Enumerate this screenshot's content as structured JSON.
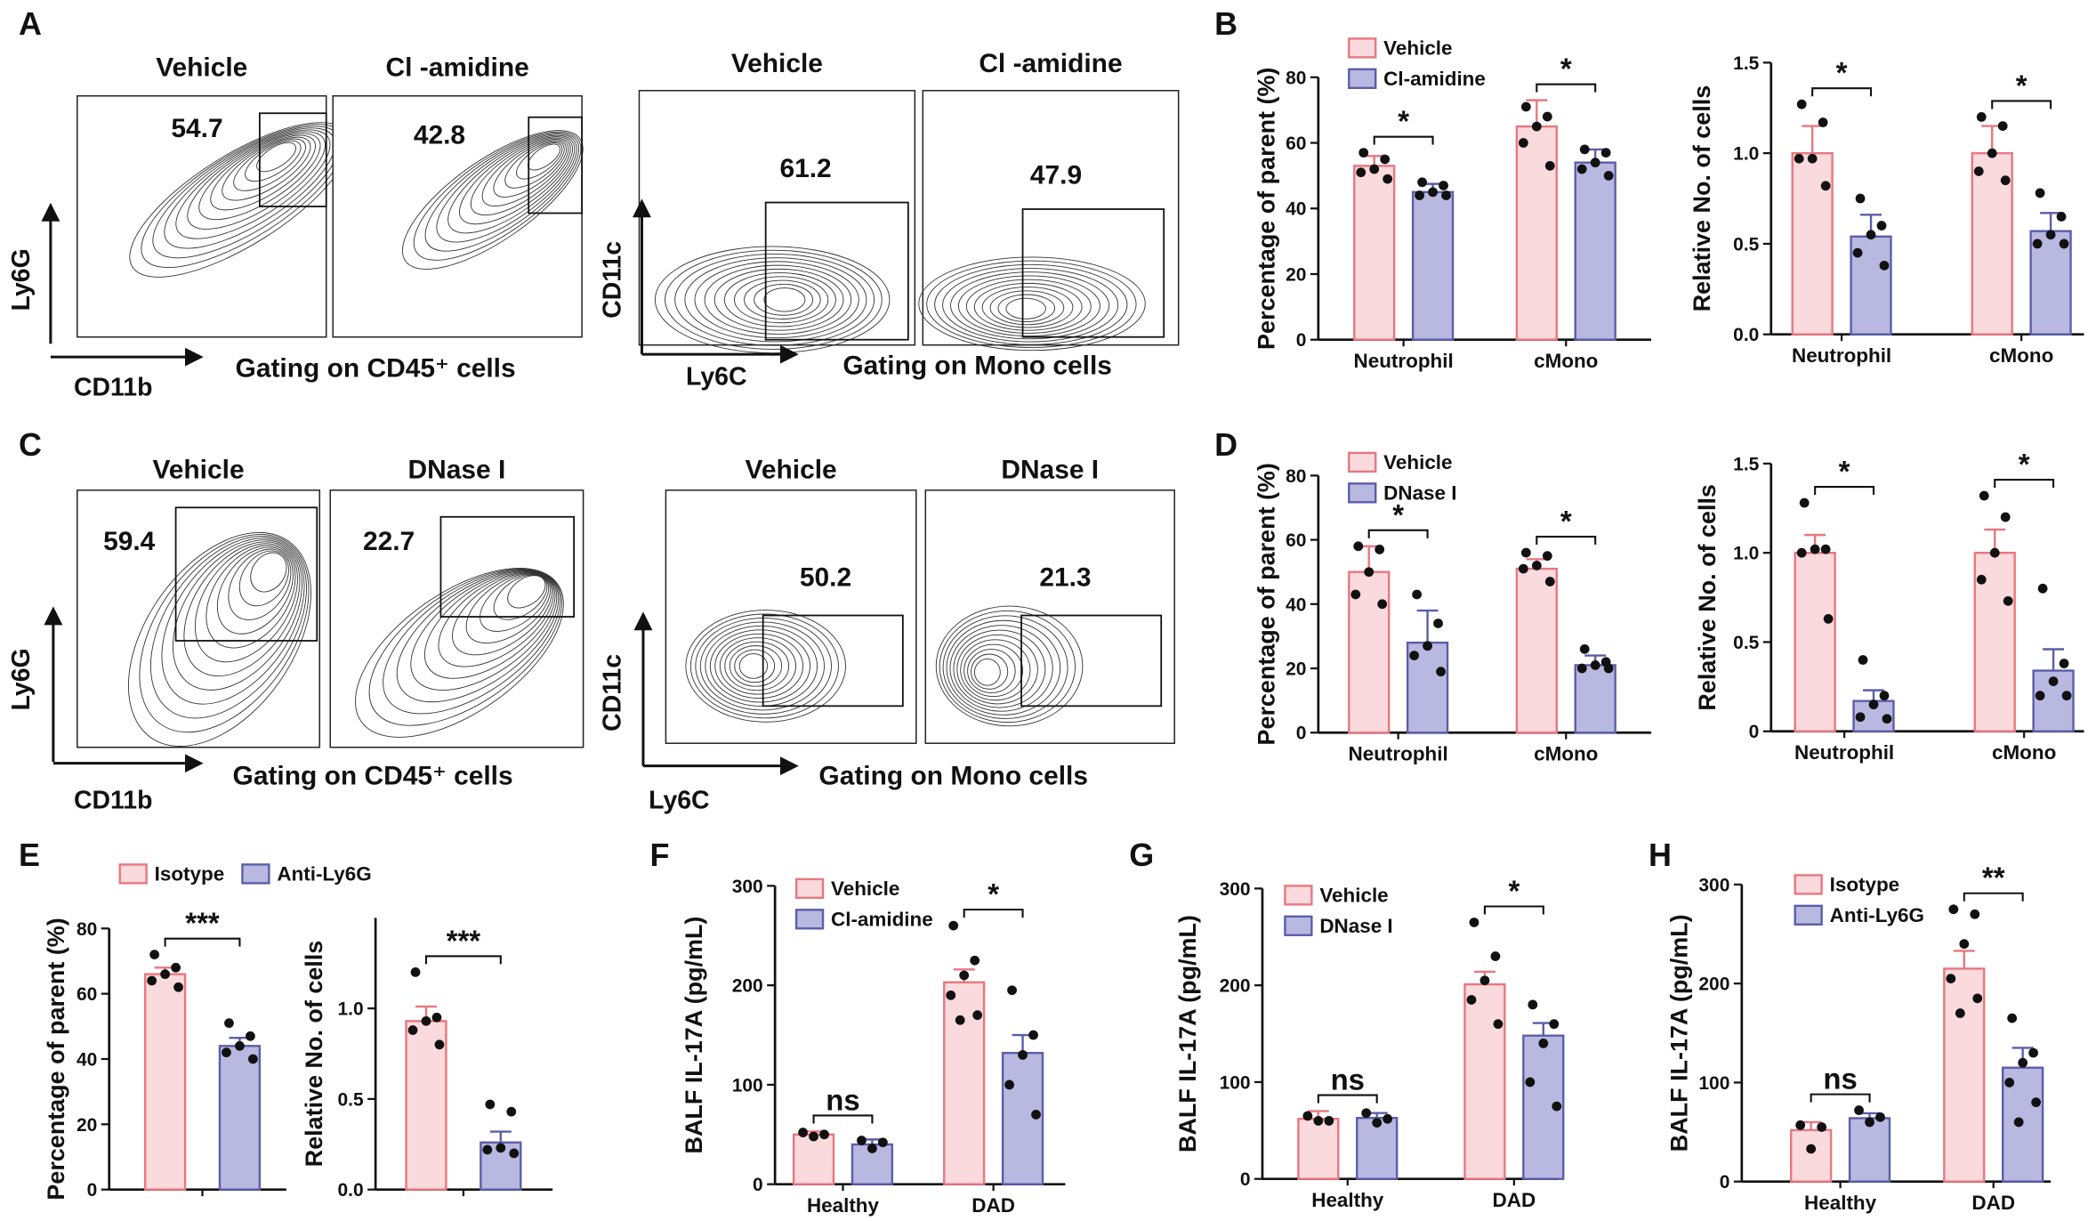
{
  "panel_letters": [
    "A",
    "B",
    "C",
    "D",
    "E",
    "F",
    "G",
    "H"
  ],
  "flow_panels": [
    {
      "x_label": "CD11b",
      "y_label": "Ly6G",
      "gating": "Gating on CD45⁺ cells",
      "plots": [
        {
          "title": "Vehicle",
          "value": 54.7
        },
        {
          "title": "Cl -amidine",
          "value": 42.8
        }
      ]
    },
    {
      "x_label": "Ly6C",
      "y_label": "CD11c",
      "gating": "Gating on Mono cells",
      "plots": [
        {
          "title": "Vehicle",
          "value": 61.2
        },
        {
          "title": "Cl -amidine",
          "value": 47.9
        }
      ]
    },
    {
      "x_label": "CD11b",
      "y_label": "Ly6G",
      "gating": "Gating on CD45⁺ cells",
      "plots": [
        {
          "title": "Vehicle",
          "value": 59.4
        },
        {
          "title": "DNase I",
          "value": 22.7
        }
      ]
    },
    {
      "x_label": "Ly6C",
      "y_label": "CD11c",
      "gating": "Gating on Mono cells",
      "plots": [
        {
          "title": "Vehicle",
          "value": 50.2
        },
        {
          "title": "DNase I",
          "value": 21.3
        }
      ]
    }
  ],
  "chart_data": [
    {
      "type": "bar",
      "y_label": "Percentage of parent (%)",
      "categories": [
        "Neutrophil",
        "cMono"
      ],
      "series": [
        {
          "name": "Vehicle",
          "color": "#e8777f",
          "fill": "#fadadd",
          "values": [
            53,
            65
          ],
          "errors": [
            3,
            8
          ],
          "points": [
            [
              57,
              55,
              52,
              51,
              49
            ],
            [
              71,
              68,
              65,
              60,
              53
            ]
          ]
        },
        {
          "name": "Cl-amidine",
          "color": "#5b5ea8",
          "fill": "#b9b8e0",
          "values": [
            45,
            54
          ],
          "errors": [
            2.5,
            4
          ],
          "points": [
            [
              48,
              47,
              45,
              44,
              44
            ],
            [
              58,
              57,
              54,
              52,
              50
            ]
          ]
        }
      ],
      "ylim": [
        0,
        80
      ],
      "yticks": [
        0,
        20,
        40,
        60,
        80
      ],
      "annotations": [
        {
          "label": "*",
          "category": 0
        },
        {
          "label": "*",
          "category": 1
        }
      ]
    },
    {
      "type": "bar",
      "y_label": "Relative No. of cells",
      "categories": [
        "Neutrophil",
        "cMono"
      ],
      "series": [
        {
          "color": "#e8777f",
          "fill": "#fadadd",
          "values": [
            1.0,
            1.0
          ],
          "errors": [
            0.15,
            0.15
          ],
          "points": [
            [
              1.27,
              1.17,
              0.97,
              0.97,
              0.82
            ],
            [
              1.2,
              1.15,
              1.0,
              0.9,
              0.85
            ]
          ]
        },
        {
          "color": "#5b5ea8",
          "fill": "#b9b8e0",
          "values": [
            0.54,
            0.57
          ],
          "errors": [
            0.12,
            0.1
          ],
          "points": [
            [
              0.75,
              0.6,
              0.55,
              0.45,
              0.38
            ],
            [
              0.78,
              0.65,
              0.55,
              0.5,
              0.5
            ]
          ]
        }
      ],
      "ylim": [
        0,
        1.5
      ],
      "yticks": [
        {
          "value": 0,
          "label": "0.0"
        },
        0.5,
        {
          "value": 1,
          "label": "1.0"
        },
        1.5
      ],
      "annotations": [
        {
          "label": "*",
          "category": 0
        },
        {
          "label": "*",
          "category": 1
        }
      ]
    },
    {
      "type": "bar",
      "y_label": "Percentage of parent (%)",
      "categories": [
        "Neutrophil",
        "cMono"
      ],
      "series": [
        {
          "name": "Vehicle",
          "color": "#e8777f",
          "fill": "#fadadd",
          "values": [
            50,
            51
          ],
          "errors": [
            8,
            3
          ],
          "points": [
            [
              58,
              57,
              50,
              43,
              40
            ],
            [
              56,
              55,
              52,
              51,
              47
            ]
          ]
        },
        {
          "name": "DNase I",
          "color": "#5b5ea8",
          "fill": "#b9b8e0",
          "values": [
            28,
            21
          ],
          "errors": [
            10,
            3
          ],
          "points": [
            [
              43,
              34,
              27,
              24,
              19
            ],
            [
              26,
              22,
              21,
              20,
              20
            ]
          ]
        }
      ],
      "ylim": [
        0,
        80
      ],
      "yticks": [
        0,
        20,
        40,
        60,
        80
      ],
      "annotations": [
        {
          "label": "*",
          "category": 0
        },
        {
          "label": "*",
          "category": 1
        }
      ]
    },
    {
      "type": "bar",
      "y_label": "Relative No. of cells",
      "categories": [
        "Neutrophil",
        "cMono"
      ],
      "series": [
        {
          "color": "#e8777f",
          "fill": "#fadadd",
          "values": [
            1.0,
            1.0
          ],
          "errors": [
            0.1,
            0.13
          ],
          "points": [
            [
              1.28,
              1.02,
              1.02,
              1.0,
              0.63
            ],
            [
              1.32,
              1.2,
              1.0,
              0.85,
              0.73
            ]
          ]
        },
        {
          "color": "#5b5ea8",
          "fill": "#b9b8e0",
          "values": [
            0.17,
            0.34
          ],
          "errors": [
            0.06,
            0.12
          ],
          "points": [
            [
              0.4,
              0.2,
              0.15,
              0.08,
              0.07
            ],
            [
              0.8,
              0.38,
              0.28,
              0.2,
              0.2
            ]
          ]
        }
      ],
      "ylim": [
        0,
        1.5
      ],
      "yticks": [
        {
          "value": 0,
          "label": "0"
        },
        0.5,
        {
          "value": 1,
          "label": "1.0"
        },
        1.5
      ],
      "annotations": [
        {
          "label": "*",
          "category": 0
        },
        {
          "label": "*",
          "category": 1
        }
      ]
    },
    {
      "type": "bar",
      "y_label": "Percentage of parent (%)",
      "categories": [
        null
      ],
      "series": [
        {
          "name": "Isotype",
          "color": "#e8777f",
          "fill": "#fadadd",
          "values": [
            66
          ],
          "errors": [
            2
          ],
          "points": [
            [
              72,
              68,
              66,
              64,
              62
            ]
          ]
        },
        {
          "name": "Anti-Ly6G",
          "color": "#5b5ea8",
          "fill": "#b9b8e0",
          "values": [
            44
          ],
          "errors": [
            2.5
          ],
          "points": [
            [
              51,
              47,
              44,
              42,
              40
            ]
          ]
        }
      ],
      "ylim": [
        0,
        80
      ],
      "yticks": [
        0,
        20,
        40,
        60,
        80
      ],
      "annotations": [
        {
          "label": "***",
          "category": 0
        }
      ]
    },
    {
      "type": "bar",
      "y_label": "Relative No. of cells",
      "categories": [
        null
      ],
      "series": [
        {
          "color": "#e8777f",
          "fill": "#fadadd",
          "values": [
            0.93
          ],
          "errors": [
            0.08
          ],
          "points": [
            [
              1.2,
              0.95,
              0.93,
              0.88,
              0.8
            ]
          ]
        },
        {
          "color": "#5b5ea8",
          "fill": "#b9b8e0",
          "values": [
            0.26
          ],
          "errors": [
            0.06
          ],
          "points": [
            [
              0.47,
              0.43,
              0.23,
              0.22,
              0.2
            ]
          ]
        }
      ],
      "ylim": [
        0,
        1.5
      ],
      "yticks": [
        {
          "value": 0,
          "label": "0.0"
        },
        0.5,
        {
          "value": 1,
          "label": "1.0"
        }
      ],
      "annotations": [
        {
          "label": "***",
          "category": 0
        }
      ]
    },
    {
      "type": "bar",
      "y_label": "BALF IL-17A (pg/mL)",
      "categories": [
        "Healthy",
        "DAD"
      ],
      "series": [
        {
          "name": "Vehicle",
          "color": "#e8777f",
          "fill": "#fadadd",
          "values": [
            50,
            203
          ],
          "errors": [
            3,
            13
          ],
          "points": [
            [
              52,
              50,
              48
            ],
            [
              260,
              225,
              210,
              190,
              170,
              165
            ]
          ]
        },
        {
          "name": "Cl-amidine",
          "color": "#5b5ea8",
          "fill": "#b9b8e0",
          "values": [
            40,
            132
          ],
          "errors": [
            5,
            18
          ],
          "points": [
            [
              44,
              42,
              36
            ],
            [
              195,
              150,
              130,
              100,
              70
            ]
          ]
        }
      ],
      "ylim": [
        0,
        300
      ],
      "yticks": [
        0,
        100,
        200,
        300
      ],
      "annotations": [
        {
          "label": "ns",
          "category": 0
        },
        {
          "label": "*",
          "category": 1
        }
      ]
    },
    {
      "type": "bar",
      "y_label": "BALF IL-17A (pg/mL)",
      "categories": [
        "Healthy",
        "DAD"
      ],
      "series": [
        {
          "name": "Vehicle",
          "color": "#e8777f",
          "fill": "#fadadd",
          "values": [
            62,
            201
          ],
          "errors": [
            8,
            13
          ],
          "points": [
            [
              65,
              60,
              60
            ],
            [
              265,
              230,
              205,
              185,
              160
            ]
          ]
        },
        {
          "name": "DNase I",
          "color": "#5b5ea8",
          "fill": "#b9b8e0",
          "values": [
            63,
            148
          ],
          "errors": [
            5,
            13
          ],
          "points": [
            [
              68,
              62,
              58
            ],
            [
              180,
              160,
              140,
              100,
              75
            ]
          ]
        }
      ],
      "ylim": [
        0,
        300
      ],
      "yticks": [
        0,
        100,
        200,
        300
      ],
      "annotations": [
        {
          "label": "ns",
          "category": 0
        },
        {
          "label": "*",
          "category": 1
        }
      ]
    },
    {
      "type": "bar",
      "y_label": "BALF IL-17A (pg/mL)",
      "categories": [
        "Healthy",
        "DAD"
      ],
      "series": [
        {
          "name": "Isotype",
          "color": "#e8777f",
          "fill": "#fadadd",
          "values": [
            52,
            215
          ],
          "errors": [
            8,
            18
          ],
          "points": [
            [
              57,
              55,
              33
            ],
            [
              275,
              270,
              240,
              205,
              185,
              170
            ]
          ]
        },
        {
          "name": "Anti-Ly6G",
          "color": "#5b5ea8",
          "fill": "#b9b8e0",
          "values": [
            64,
            115
          ],
          "errors": [
            5,
            20
          ],
          "points": [
            [
              72,
              65,
              60
            ],
            [
              165,
              130,
              120,
              100,
              80,
              60
            ]
          ]
        }
      ],
      "ylim": [
        0,
        300
      ],
      "yticks": [
        0,
        100,
        200,
        300
      ],
      "annotations": [
        {
          "label": "ns",
          "category": 0
        },
        {
          "label": "**",
          "category": 1
        }
      ]
    }
  ]
}
